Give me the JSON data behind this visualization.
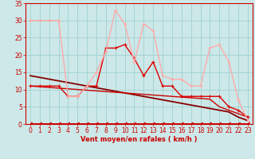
{
  "background_color": "#cce8e8",
  "grid_color": "#99cccc",
  "xlabel": "Vent moyen/en rafales ( km/h )",
  "xlabel_color": "#cc0000",
  "xlabel_fontsize": 6,
  "tick_color": "#cc0000",
  "tick_fontsize": 5.5,
  "xlim": [
    -0.5,
    23.5
  ],
  "ylim": [
    0,
    35
  ],
  "yticks": [
    0,
    5,
    10,
    15,
    20,
    25,
    30,
    35
  ],
  "xticks": [
    0,
    1,
    2,
    3,
    4,
    5,
    6,
    7,
    8,
    9,
    10,
    11,
    12,
    13,
    14,
    15,
    16,
    17,
    18,
    19,
    20,
    21,
    22,
    23
  ],
  "x": [
    0,
    1,
    2,
    3,
    4,
    5,
    6,
    7,
    8,
    9,
    10,
    11,
    12,
    13,
    14,
    15,
    16,
    17,
    18,
    19,
    20,
    21,
    22,
    23
  ],
  "line_gust_y": [
    30,
    30,
    30,
    30,
    8,
    8,
    11,
    15,
    21,
    33,
    29,
    18,
    29,
    27,
    14,
    13,
    13,
    11,
    11,
    22,
    23,
    18,
    7,
    1
  ],
  "line_gust_color": "#ffaaaa",
  "line_avg_y": [
    11,
    11,
    11,
    11,
    8,
    8,
    11,
    11,
    22,
    22,
    23,
    19,
    14,
    18,
    11,
    11,
    8,
    8,
    8,
    8,
    8,
    5,
    4,
    2
  ],
  "line_avg_color": "#dd0000",
  "line_trend1_y": [
    14,
    13.5,
    13,
    12.5,
    12,
    11.5,
    11,
    10.5,
    10,
    9.5,
    9,
    8.5,
    8,
    7.5,
    7,
    6.5,
    6,
    5.5,
    5,
    4.5,
    4,
    3.5,
    2,
    1
  ],
  "line_trend1_color": "#880000",
  "line_trend2_y": [
    11,
    10.8,
    10.6,
    10.4,
    10.2,
    10.0,
    9.8,
    9.6,
    9.4,
    9.2,
    9.0,
    8.8,
    8.6,
    8.4,
    8.2,
    8.0,
    7.8,
    7.6,
    7.4,
    7.2,
    5,
    4,
    3,
    2
  ],
  "line_trend2_color": "#cc0000",
  "line_bottom_y": [
    0.3,
    0.3,
    0.3,
    0.3,
    0.3,
    0.3,
    0.3,
    0.3,
    0.3,
    0.3,
    0.3,
    0.3,
    0.3,
    0.3,
    0.3,
    0.3,
    0.3,
    0.3,
    0.3,
    0.3,
    0.3,
    0.3,
    0.3,
    0.3
  ],
  "line_bottom_color": "#cc0000"
}
